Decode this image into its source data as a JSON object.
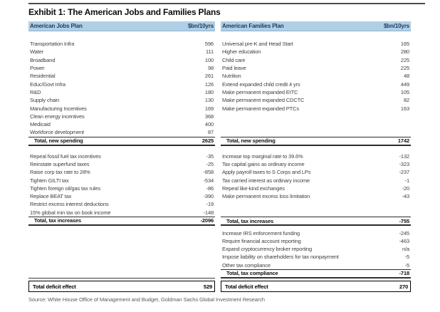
{
  "title": "Exhibit 1: The American Jobs and Families Plans",
  "source": "Source: White House Office of Management and Budget, Goldman Sachs Global Investment Research",
  "colors": {
    "header_bg": "#b0cfe5",
    "header_text": "#1b3a5f"
  },
  "tables": [
    {
      "id": "american-jobs-plan",
      "header": {
        "label": "American Jobs Plan",
        "unit": "$bn/10yrs"
      },
      "sections": [
        {
          "name": "new-spending",
          "rows": [
            {
              "label": "Transportation Infra",
              "value": "596"
            },
            {
              "label": "Water",
              "value": "111"
            },
            {
              "label": "Broadband",
              "value": "100"
            },
            {
              "label": "Power",
              "value": "98"
            },
            {
              "label": "Residential",
              "value": "261"
            },
            {
              "label": "Educ/Govt Infra",
              "value": "126"
            },
            {
              "label": "R&D",
              "value": "180"
            },
            {
              "label": "Supply chain",
              "value": "130"
            },
            {
              "label": "Manufacturing Incentives",
              "value": "169"
            },
            {
              "label": "Clean energy incentives",
              "value": "368"
            },
            {
              "label": "Medicaid",
              "value": "400"
            },
            {
              "label": "Workforce development",
              "value": "87"
            }
          ],
          "total": {
            "label": "Total, new spending",
            "value": "2625"
          }
        },
        {
          "name": "tax-increases",
          "rows": [
            {
              "label": "Repeal fossil fuel tax incentives",
              "value": "-35"
            },
            {
              "label": "Reinstate superfund taxes",
              "value": "-25"
            },
            {
              "label": "Raise corp tax rate to 28%",
              "value": "-858"
            },
            {
              "label": "Tighten GILTI tax",
              "value": "-534"
            },
            {
              "label": "Tighten foreign oil/gas tax rules",
              "value": "-86"
            },
            {
              "label": "Replace BEAT tax",
              "value": "-390"
            },
            {
              "label": "Restrict excess interest deductions",
              "value": "-19"
            },
            {
              "label": "15% global min tax on book income",
              "value": "-148"
            }
          ],
          "total": {
            "label": "Total, tax increases",
            "value": "-2096"
          }
        }
      ],
      "deficit": {
        "label": "Total deficit effect",
        "value": "529"
      }
    },
    {
      "id": "american-families-plan",
      "header": {
        "label": "American Families Plan",
        "unit": "$bn/10yrs"
      },
      "sections": [
        {
          "name": "new-spending",
          "rows": [
            {
              "label": "Universal pre-K and Head Start",
              "value": "165"
            },
            {
              "label": "Higher education",
              "value": "280"
            },
            {
              "label": "Child care",
              "value": "225"
            },
            {
              "label": "Paid leave",
              "value": "225"
            },
            {
              "label": "Nutrition",
              "value": "48"
            },
            {
              "label": "Extend expanded child credit 4 yrs",
              "value": "449"
            },
            {
              "label": "Make permanent expanded EITC",
              "value": "105"
            },
            {
              "label": "Make permanent expanded CDCTC",
              "value": "82"
            },
            {
              "label": "Make permanent expanded PTCs",
              "value": "163"
            }
          ],
          "total": {
            "label": "Total, new spending",
            "value": "1742"
          }
        },
        {
          "name": "tax-increases",
          "rows": [
            {
              "label": "Increase top marginal rate to 39.6%",
              "value": "-132"
            },
            {
              "label": "Tax capital gains as ordinary income",
              "value": "-323"
            },
            {
              "label": "Apply payroll taxes to S Corps and LPs",
              "value": "-237"
            },
            {
              "label": "Tax carried interest as ordinary income",
              "value": "-1"
            },
            {
              "label": "Repeal like-kind exchanges",
              "value": "-20"
            },
            {
              "label": "Make permanent excess loss limitation",
              "value": "-43"
            }
          ],
          "total": {
            "label": "Total, tax increases",
            "value": "-755"
          }
        },
        {
          "name": "tax-compliance",
          "rows": [
            {
              "label": "Increase IRS enforcement funding",
              "value": "-245"
            },
            {
              "label": "Require financial account reporting",
              "value": "-463"
            },
            {
              "label": "Expand cryptocurrency broker reporting",
              "value": "n/a"
            },
            {
              "label": "Impose liability on shareholders for tax nonpayment",
              "value": "-5"
            },
            {
              "label": "Other tax compliance",
              "value": "-5"
            }
          ],
          "total": {
            "label": "Total, tax compliance",
            "value": "-718"
          }
        }
      ],
      "deficit": {
        "label": "Total deficit effect",
        "value": "270"
      }
    }
  ]
}
